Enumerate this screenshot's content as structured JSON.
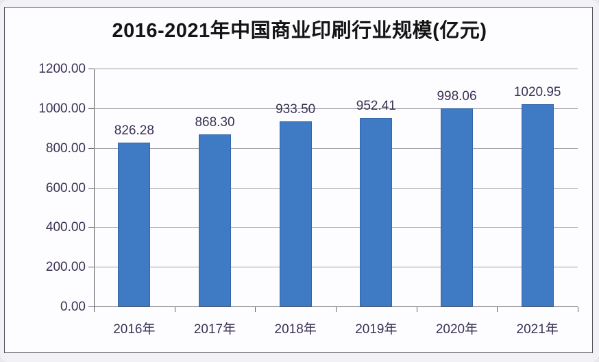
{
  "chart_data": {
    "type": "bar",
    "title": "2016-2021年中国商业印刷行业规模(亿元)",
    "categories": [
      "2016年",
      "2017年",
      "2018年",
      "2019年",
      "2020年",
      "2021年"
    ],
    "values": [
      826.28,
      868.3,
      933.5,
      952.41,
      998.06,
      1020.95
    ],
    "value_labels": [
      "826.28",
      "868.30",
      "933.50",
      "952.41",
      "998.06",
      "1020.95"
    ],
    "xlabel": "",
    "ylabel": "",
    "ylim": [
      0,
      1200
    ],
    "ytick_interval": 200,
    "ytick_labels": [
      "0.00",
      "200.00",
      "400.00",
      "600.00",
      "800.00",
      "1000.00",
      "1200.00"
    ],
    "grid": true,
    "legend_position": "none",
    "colors": {
      "bar_fill": "#3E7BC4",
      "bar_border": "#3266A6",
      "gridline": "#9d9da3",
      "axis": "#606066",
      "tick_label": "#3B3153",
      "data_label": "#3B3153",
      "title": "#141414",
      "frame_border": "#55555e",
      "chart_bg": "#fdfdff",
      "page_bg": "#f2f2f6"
    }
  }
}
